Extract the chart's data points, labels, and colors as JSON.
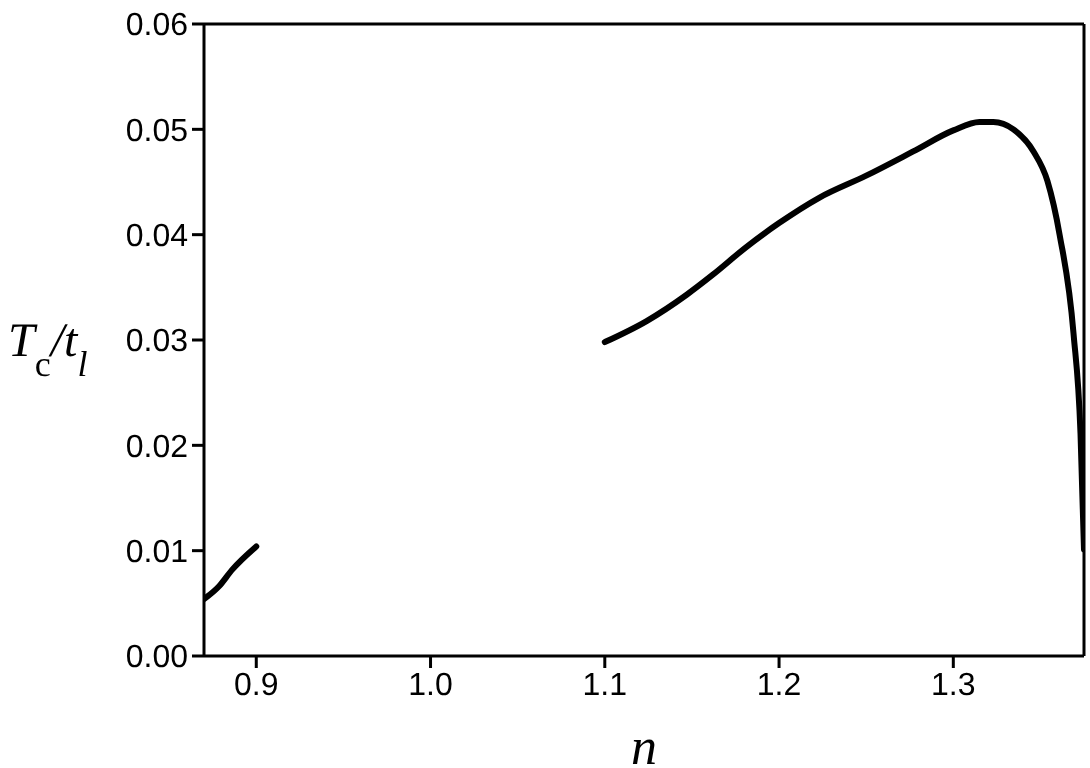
{
  "chart_data": {
    "type": "line",
    "xlabel": "n",
    "ylabel": "T$_{c}$/t$_{l}$",
    "xlim": [
      0.87,
      1.375
    ],
    "xticks": [
      0.9,
      {
        "value": 1,
        "label": "1.0"
      },
      1.1,
      1.2,
      1.3
    ],
    "ylim": [
      0,
      0.06
    ],
    "yticks": [
      {
        "value": 0,
        "label": "0.00"
      },
      0.01,
      0.02,
      0.03,
      0.04,
      0.05,
      0.06
    ],
    "marker": "none",
    "line_style": "solid",
    "series": [
      {
        "color": "#000000",
        "x": [
          0.87,
          0.8785,
          0.8862,
          0.9
        ],
        "values": [
          0.0054,
          0.0066,
          0.0082,
          0.0104
        ]
      },
      {
        "color": "#000000",
        "x": [
          1.1,
          1.124,
          1.147,
          1.162,
          1.181,
          1.2,
          1.223,
          1.25,
          1.277,
          1.3,
          1.315,
          1.323,
          1.3345,
          1.346,
          1.354,
          1.361,
          1.369,
          1.373,
          1.375
        ],
        "values": [
          0.0298,
          0.0318,
          0.0343,
          0.0362,
          0.0388,
          0.0411,
          0.0435,
          0.0456,
          0.0479,
          0.0499,
          0.0507,
          0.0507,
          0.05,
          0.0479,
          0.0451,
          0.04,
          0.0306,
          0.0211,
          0.0101
        ]
      }
    ]
  }
}
